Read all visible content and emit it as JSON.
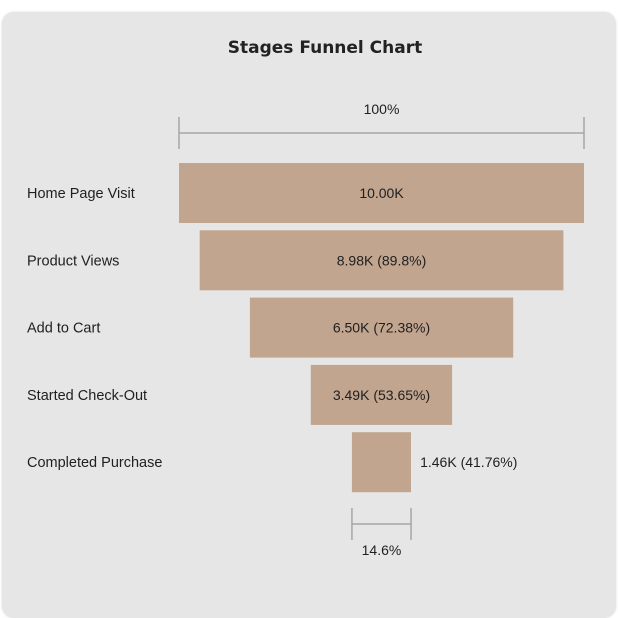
{
  "chart_data": {
    "type": "funnel",
    "title": "Stages Funnel Chart",
    "top_percent_label": "100%",
    "bottom_percent_label": "14.6%",
    "categories": [
      "Home Page Visit",
      "Product Views",
      "Add to Cart",
      "Started Check-Out",
      "Completed Purchase"
    ],
    "values": [
      10000,
      8980,
      6500,
      3490,
      1460
    ],
    "value_labels": [
      "10.00K",
      "8.98K (89.8%)",
      "6.50K (72.38%)",
      "3.49K (53.65%)",
      "1.46K (41.76%)"
    ],
    "legend": "none",
    "grid": false
  },
  "colors": {
    "bar": "#c1a58f",
    "background": "#e6e6e6",
    "bracket": "#a6a6a6",
    "text": "#1f1f1f"
  }
}
